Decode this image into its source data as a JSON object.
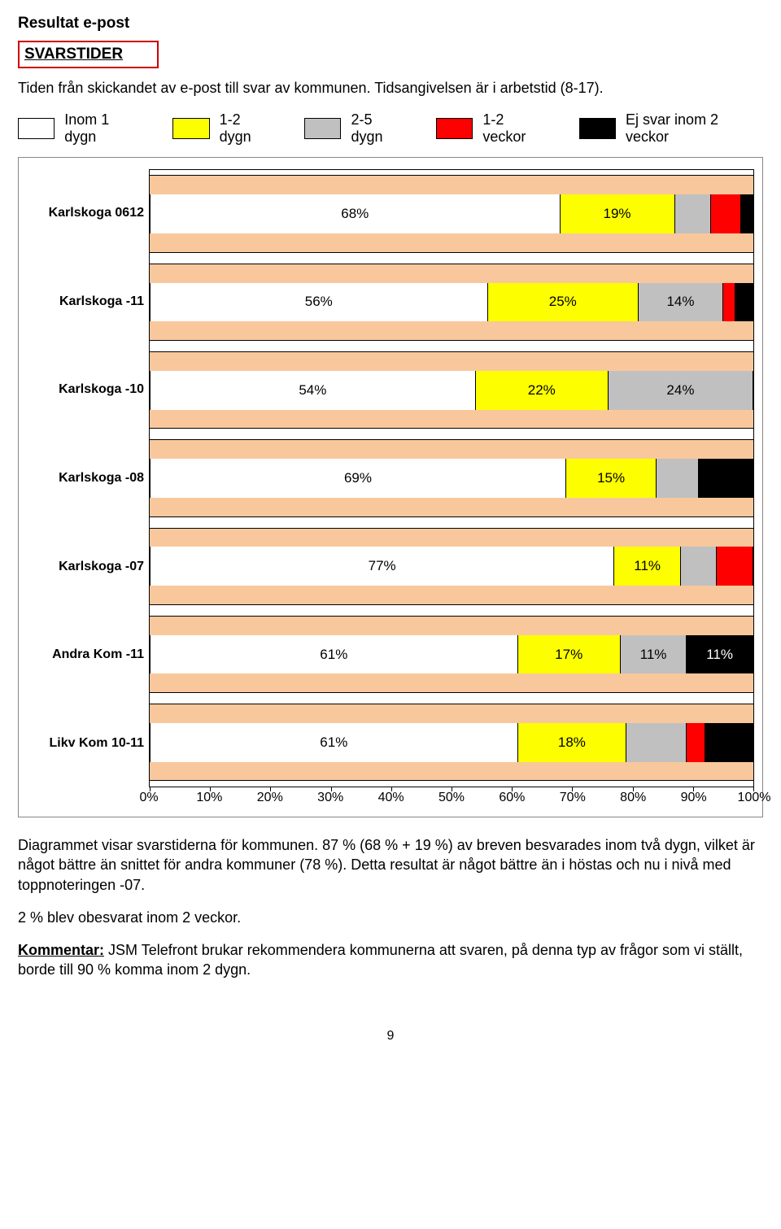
{
  "title": "Resultat e-post",
  "subtitle": "SVARSTIDER",
  "intro": "Tiden från skickandet av e-post till svar av kommunen. Tidsangivelsen är i arbetstid (8-17).",
  "legend": [
    {
      "label": "Inom 1 dygn",
      "color": "#ffffff"
    },
    {
      "label": "1-2 dygn",
      "color": "#fdff00"
    },
    {
      "label": "2-5 dygn",
      "color": "#c0c0c0"
    },
    {
      "label": "1-2 veckor",
      "color": "#ff0000"
    },
    {
      "label": "Ej svar inom 2 veckor",
      "color": "#000000"
    }
  ],
  "chart": {
    "type": "stacked-bar-horizontal",
    "background_color": "#f8c89c",
    "track_color": "#f8c89c",
    "xlim": [
      0,
      100
    ],
    "xtick_step": 10,
    "xtick_suffix": "%",
    "label_fontsize": 16,
    "value_fontsize": 17,
    "series_colors": [
      "#ffffff",
      "#fdff00",
      "#c0c0c0",
      "#ff0000",
      "#000000"
    ],
    "segment_text_colors": [
      "#000000",
      "#000000",
      "#000000",
      "#000000",
      "#ffffff"
    ],
    "min_label_pct": 11,
    "categories": [
      {
        "label": "Karlskoga 0612",
        "values": [
          68,
          19,
          6,
          5,
          2
        ]
      },
      {
        "label": "Karlskoga -11",
        "values": [
          56,
          25,
          14,
          2,
          3
        ]
      },
      {
        "label": "Karlskoga -10",
        "values": [
          54,
          22,
          24,
          0,
          0
        ]
      },
      {
        "label": "Karlskoga -08",
        "values": [
          69,
          15,
          7,
          0,
          9
        ]
      },
      {
        "label": "Karlskoga -07",
        "values": [
          77,
          11,
          6,
          6,
          0
        ]
      },
      {
        "label": "Andra Kom -11",
        "values": [
          61,
          17,
          11,
          0,
          11
        ]
      },
      {
        "label": "Likv Kom 10-11",
        "values": [
          61,
          18,
          10,
          3,
          8
        ]
      }
    ]
  },
  "para1": "Diagrammet visar svarstiderna för kommunen.  87 % (68 % + 19 %) av breven besvarades inom två dygn, vilket är något bättre än snittet för andra kommuner (78 %).",
  "para2": "Detta resultat är något bättre än i höstas och nu i nivå med toppnoteringen -07.",
  "para3": "2 % blev obesvarat inom 2 veckor.",
  "kommentar_lead": "Kommentar:",
  "kommentar_body": " JSM Telefront brukar rekommendera kommunerna att svaren, på denna typ av frågor som vi ställt, borde till 90 % komma inom 2 dygn.",
  "page_number": "9"
}
